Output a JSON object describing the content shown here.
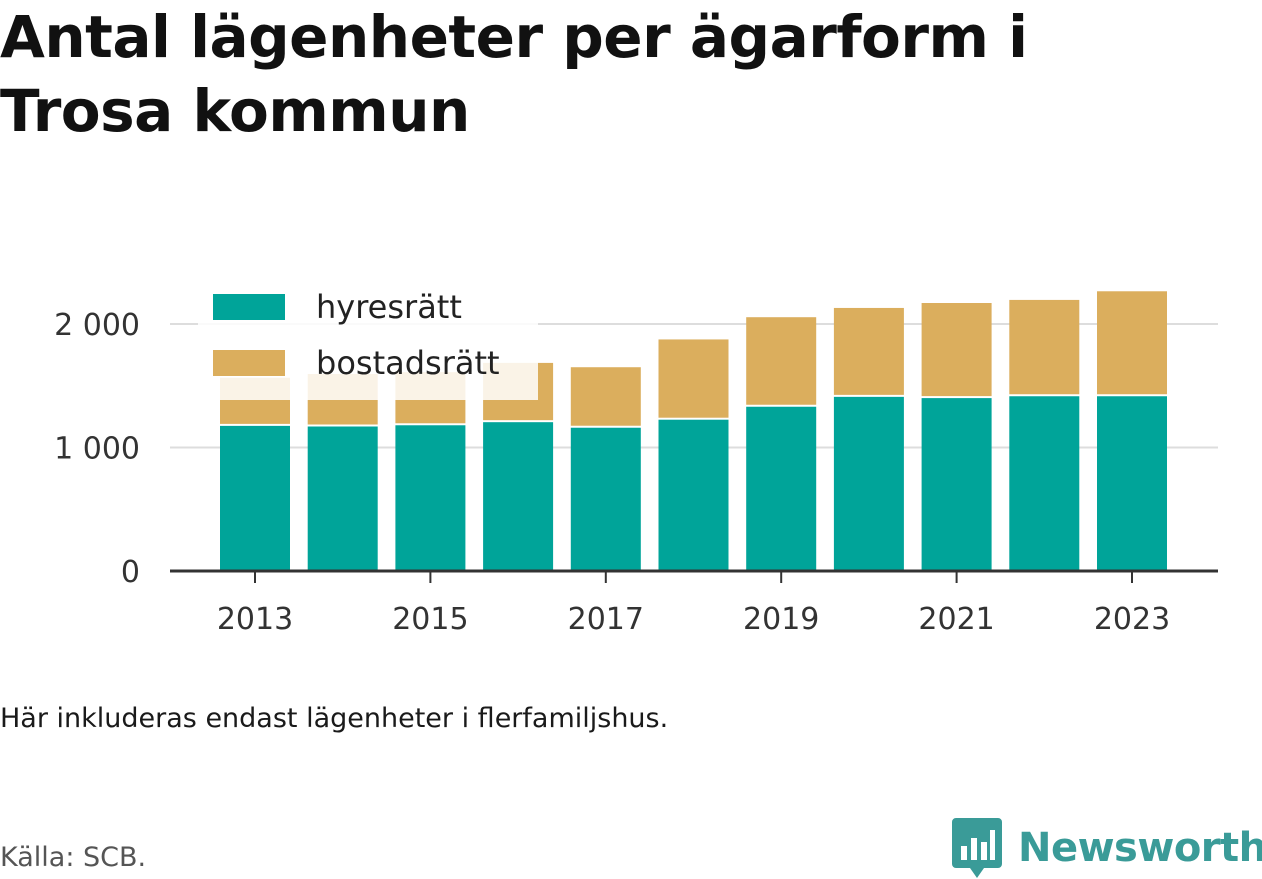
{
  "title": "Antal lägenheter per ägarform i Trosa kommun",
  "note": "Här inkluderas endast lägenheter i flerfamiljshus.",
  "source": "Källa: SCB.",
  "brand": "Newsworthy",
  "colors": {
    "hyresratt": "#00a499",
    "bostadsratt": "#dbae5d",
    "grid": "#dddddd",
    "axis": "#333333",
    "brand": "#3a9b98"
  },
  "chart_data": {
    "type": "bar",
    "stacked": true,
    "categories": [
      "2013",
      "2014",
      "2015",
      "2016",
      "2017",
      "2018",
      "2019",
      "2020",
      "2021",
      "2022",
      "2023"
    ],
    "series": [
      {
        "name": "hyresrätt",
        "values": [
          1175,
          1170,
          1180,
          1205,
          1160,
          1225,
          1330,
          1410,
          1400,
          1415,
          1415
        ]
      },
      {
        "name": "bostadsrätt",
        "values": [
          390,
          425,
          430,
          480,
          490,
          650,
          725,
          720,
          770,
          780,
          850
        ]
      }
    ],
    "x_tick_labels": [
      "2013",
      "2015",
      "2017",
      "2019",
      "2021",
      "2023"
    ],
    "y_ticks": [
      0,
      1000,
      2000
    ],
    "y_tick_labels": [
      "0",
      "1 000",
      "2 000"
    ],
    "ylim": [
      0,
      2400
    ],
    "xlabel": "",
    "ylabel": "",
    "grid": true,
    "legend": "top-left"
  }
}
